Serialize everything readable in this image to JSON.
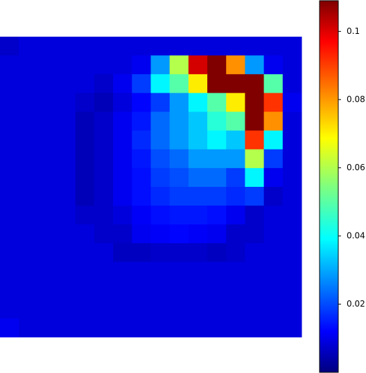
{
  "chart_data": {
    "type": "heatmap",
    "colormap": "jet",
    "values": [
      [
        0.008,
        0.01,
        0.01,
        0.01,
        0.01,
        0.01,
        0.01,
        0.01,
        0.01,
        0.01,
        0.01,
        0.01,
        0.01,
        0.01,
        0.01,
        0.01
      ],
      [
        0.01,
        0.01,
        0.01,
        0.01,
        0.01,
        0.01,
        0.01,
        0.012,
        0.03,
        0.06,
        0.1,
        0.109,
        0.08,
        0.03,
        0.012,
        0.01
      ],
      [
        0.01,
        0.01,
        0.01,
        0.01,
        0.01,
        0.008,
        0.012,
        0.02,
        0.04,
        0.05,
        0.07,
        0.109,
        0.109,
        0.109,
        0.05,
        0.01
      ],
      [
        0.01,
        0.01,
        0.01,
        0.01,
        0.008,
        0.006,
        0.01,
        0.014,
        0.02,
        0.03,
        0.04,
        0.05,
        0.07,
        0.109,
        0.09,
        0.012
      ],
      [
        0.01,
        0.01,
        0.01,
        0.01,
        0.006,
        0.008,
        0.012,
        0.016,
        0.025,
        0.03,
        0.035,
        0.045,
        0.05,
        0.109,
        0.08,
        0.01
      ],
      [
        0.01,
        0.01,
        0.01,
        0.01,
        0.006,
        0.008,
        0.012,
        0.018,
        0.025,
        0.03,
        0.035,
        0.04,
        0.035,
        0.09,
        0.04,
        0.01
      ],
      [
        0.01,
        0.01,
        0.01,
        0.01,
        0.006,
        0.008,
        0.012,
        0.016,
        0.022,
        0.025,
        0.03,
        0.03,
        0.03,
        0.06,
        0.02,
        0.01
      ],
      [
        0.01,
        0.01,
        0.01,
        0.01,
        0.006,
        0.008,
        0.012,
        0.015,
        0.02,
        0.022,
        0.025,
        0.025,
        0.02,
        0.04,
        0.012,
        0.01
      ],
      [
        0.01,
        0.01,
        0.01,
        0.01,
        0.006,
        0.008,
        0.012,
        0.015,
        0.018,
        0.02,
        0.02,
        0.02,
        0.018,
        0.02,
        0.008,
        0.01
      ],
      [
        0.01,
        0.01,
        0.01,
        0.01,
        0.008,
        0.008,
        0.01,
        0.013,
        0.015,
        0.016,
        0.016,
        0.015,
        0.012,
        0.008,
        0.01,
        0.01
      ],
      [
        0.01,
        0.01,
        0.01,
        0.01,
        0.01,
        0.008,
        0.008,
        0.012,
        0.013,
        0.014,
        0.013,
        0.012,
        0.008,
        0.008,
        0.01,
        0.01
      ],
      [
        0.01,
        0.01,
        0.01,
        0.01,
        0.01,
        0.01,
        0.007,
        0.007,
        0.008,
        0.008,
        0.008,
        0.007,
        0.008,
        0.01,
        0.01,
        0.01
      ],
      [
        0.01,
        0.01,
        0.01,
        0.01,
        0.01,
        0.01,
        0.01,
        0.01,
        0.01,
        0.01,
        0.01,
        0.01,
        0.01,
        0.01,
        0.01,
        0.01
      ],
      [
        0.01,
        0.01,
        0.01,
        0.01,
        0.01,
        0.01,
        0.01,
        0.01,
        0.01,
        0.01,
        0.01,
        0.01,
        0.01,
        0.01,
        0.01,
        0.01
      ],
      [
        0.01,
        0.01,
        0.01,
        0.01,
        0.01,
        0.01,
        0.01,
        0.01,
        0.01,
        0.01,
        0.01,
        0.01,
        0.01,
        0.01,
        0.01,
        0.01
      ],
      [
        0.012,
        0.01,
        0.01,
        0.01,
        0.01,
        0.01,
        0.01,
        0.01,
        0.01,
        0.01,
        0.01,
        0.01,
        0.01,
        0.01,
        0.01,
        0.01
      ]
    ],
    "clim": [
      0,
      0.109
    ],
    "cticks": [
      0.02,
      0.04,
      0.06,
      0.08,
      0.1
    ]
  }
}
